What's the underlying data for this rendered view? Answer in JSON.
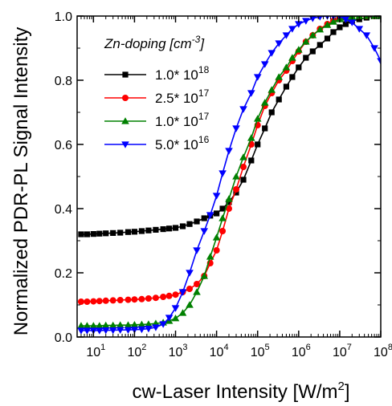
{
  "chart_data": {
    "type": "line",
    "xlabel": "cw-Laser Intensity [W/m",
    "xlabel_sup": "2",
    "xlabel_end": "]",
    "ylabel": "Normalized PDR-PL Signal Intensity",
    "x_scale": "log",
    "xlim": [
      4,
      100000000
    ],
    "ylim": [
      0.0,
      1.0
    ],
    "y_ticks": [
      "0.0",
      "0.2",
      "0.4",
      "0.6",
      "0.8",
      "1.0"
    ],
    "x_ticks": [
      {
        "base": "10",
        "exp": "1"
      },
      {
        "base": "10",
        "exp": "2"
      },
      {
        "base": "10",
        "exp": "3"
      },
      {
        "base": "10",
        "exp": "4"
      },
      {
        "base": "10",
        "exp": "5"
      },
      {
        "base": "10",
        "exp": "6"
      },
      {
        "base": "10",
        "exp": "7"
      },
      {
        "base": "10",
        "exp": "8"
      }
    ],
    "grid": false,
    "legend": {
      "position": "top-left",
      "title": "Zn-doping [cm",
      "title_sup": "-3",
      "title_end": "]"
    },
    "series": [
      {
        "label_base": "1.0* 10",
        "label_exp": "18",
        "color": "#000000",
        "marker": "square",
        "x": [
          5,
          7,
          10,
          14,
          20,
          30,
          45,
          70,
          100,
          150,
          220,
          330,
          500,
          700,
          1000,
          1500,
          2200,
          3300,
          5000,
          7000,
          10000,
          14000,
          20000,
          30000,
          45000,
          70000,
          100000,
          150000,
          220000,
          330000,
          500000,
          700000,
          1000000,
          1500000,
          2200000,
          3300000,
          5000000,
          7000000,
          10000000,
          14000000,
          20000000,
          30000000,
          45000000,
          70000000,
          100000000
        ],
        "y": [
          0.32,
          0.32,
          0.321,
          0.322,
          0.323,
          0.324,
          0.325,
          0.327,
          0.328,
          0.33,
          0.332,
          0.334,
          0.336,
          0.338,
          0.34,
          0.345,
          0.352,
          0.36,
          0.37,
          0.378,
          0.385,
          0.4,
          0.42,
          0.45,
          0.49,
          0.55,
          0.6,
          0.65,
          0.7,
          0.74,
          0.78,
          0.81,
          0.84,
          0.87,
          0.89,
          0.91,
          0.93,
          0.95,
          0.965,
          0.975,
          0.985,
          0.99,
          0.995,
          1.0,
          1.0
        ]
      },
      {
        "label_base": "2.5* 10",
        "label_exp": "17",
        "color": "#ff0000",
        "marker": "circle",
        "x": [
          5,
          7,
          10,
          14,
          20,
          30,
          45,
          70,
          100,
          150,
          220,
          330,
          500,
          700,
          1000,
          1500,
          2200,
          3300,
          5000,
          7000,
          10000,
          14000,
          20000,
          30000,
          45000,
          70000,
          100000,
          150000,
          220000,
          330000,
          500000,
          700000,
          1000000,
          1500000,
          2200000,
          3300000,
          5000000,
          7000000,
          10000000,
          14000000,
          20000000,
          30000000,
          45000000,
          70000000
        ],
        "y": [
          0.11,
          0.11,
          0.111,
          0.112,
          0.113,
          0.114,
          0.115,
          0.116,
          0.117,
          0.118,
          0.12,
          0.122,
          0.125,
          0.128,
          0.132,
          0.14,
          0.15,
          0.165,
          0.19,
          0.23,
          0.27,
          0.33,
          0.4,
          0.46,
          0.53,
          0.6,
          0.66,
          0.72,
          0.76,
          0.8,
          0.83,
          0.86,
          0.89,
          0.92,
          0.94,
          0.96,
          0.975,
          0.985,
          0.993,
          0.997,
          1.0,
          1.0,
          1.0,
          1.0
        ]
      },
      {
        "label_base": "1.0* 10",
        "label_exp": "17",
        "color": "#008000",
        "marker": "triangle-up",
        "x": [
          5,
          7,
          10,
          14,
          20,
          30,
          45,
          70,
          100,
          150,
          220,
          330,
          500,
          700,
          1000,
          1500,
          2200,
          3300,
          5000,
          7000,
          10000,
          14000,
          20000,
          30000,
          45000,
          70000,
          100000,
          150000,
          220000,
          330000,
          500000,
          700000,
          1000000,
          1500000,
          2200000,
          3300000,
          5000000,
          7000000,
          10000000,
          14000000,
          20000000,
          30000000,
          45000000,
          70000000,
          100000000
        ],
        "y": [
          0.035,
          0.035,
          0.035,
          0.035,
          0.036,
          0.036,
          0.037,
          0.037,
          0.038,
          0.039,
          0.04,
          0.042,
          0.045,
          0.05,
          0.058,
          0.075,
          0.1,
          0.14,
          0.19,
          0.25,
          0.31,
          0.37,
          0.43,
          0.5,
          0.56,
          0.62,
          0.68,
          0.73,
          0.77,
          0.81,
          0.84,
          0.87,
          0.895,
          0.92,
          0.94,
          0.958,
          0.972,
          0.982,
          0.99,
          0.995,
          0.998,
          1.0,
          1.0,
          1.0,
          1.0
        ]
      },
      {
        "label_base": "5.0* 10",
        "label_exp": "16",
        "color": "#0000ff",
        "marker": "triangle-down",
        "x": [
          5,
          7,
          10,
          14,
          20,
          30,
          45,
          70,
          100,
          150,
          220,
          330,
          500,
          700,
          1000,
          1500,
          2200,
          3300,
          5000,
          7000,
          10000,
          14000,
          20000,
          30000,
          45000,
          70000,
          100000,
          150000,
          220000,
          330000,
          500000,
          700000,
          1000000,
          1500000,
          2200000,
          3300000,
          5000000,
          7000000,
          10000000,
          14000000,
          20000000,
          30000000,
          45000000,
          70000000,
          100000000
        ],
        "y": [
          0.02,
          0.02,
          0.02,
          0.02,
          0.021,
          0.021,
          0.022,
          0.022,
          0.023,
          0.024,
          0.026,
          0.03,
          0.04,
          0.06,
          0.09,
          0.14,
          0.2,
          0.27,
          0.33,
          0.38,
          0.44,
          0.51,
          0.58,
          0.65,
          0.71,
          0.76,
          0.81,
          0.85,
          0.885,
          0.915,
          0.94,
          0.96,
          0.975,
          0.985,
          0.993,
          0.998,
          1.0,
          1.0,
          1.0,
          0.99,
          0.98,
          0.96,
          0.94,
          0.9,
          0.86
        ]
      }
    ]
  }
}
